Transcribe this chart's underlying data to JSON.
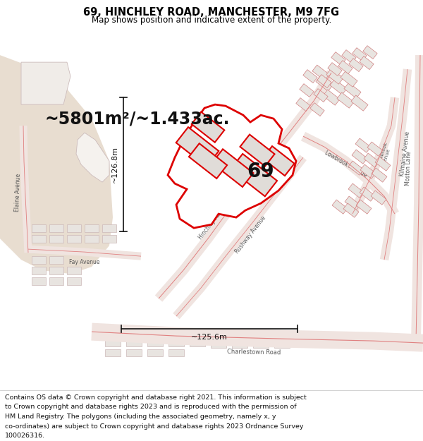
{
  "title_line1": "69, HINCHLEY ROAD, MANCHESTER, M9 7FG",
  "title_line2": "Map shows position and indicative extent of the property.",
  "area_text": "~5801m²/~1.433ac.",
  "label_69": "69",
  "dim_width": "~125.6m",
  "dim_height": "~126.8m",
  "footer_lines": [
    "Contains OS data © Crown copyright and database right 2021. This information is subject",
    "to Crown copyright and database rights 2023 and is reproduced with the permission of",
    "HM Land Registry. The polygons (including the associated geometry, namely x, y",
    "co-ordinates) are subject to Crown copyright and database rights 2023 Ordnance Survey",
    "100026316."
  ],
  "bg_color": "#f5f0eb",
  "map_bg": "#ffffff",
  "tan_area_color": "#e8ddd0",
  "white_area_color": "#f8f6f4",
  "road_fill": "#f0e8e4",
  "road_edge": "#e08080",
  "road_edge_thin": "#d06060",
  "block_fill": "#e8e4e0",
  "block_edge": "#d08080",
  "property_fill": "#ffffff",
  "property_edge": "#dd0000",
  "building_fill": "#e0dcd8",
  "building_edge": "#dd0000",
  "dim_color": "#111111",
  "text_color": "#555555",
  "title_fs": 10.5,
  "subtitle_fs": 8.5,
  "area_fs": 17,
  "label_fs": 20,
  "dim_fs": 8,
  "road_label_fs": 6,
  "block_label_fs": 5.5,
  "footer_fs": 6.8
}
